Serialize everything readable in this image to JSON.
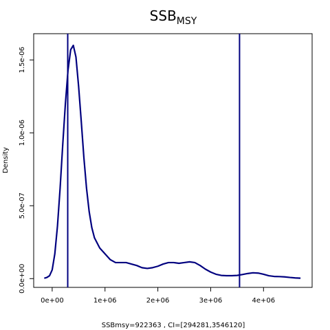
{
  "chart_data": {
    "type": "line",
    "title": "SSB",
    "title_subscript": "MSY",
    "xlabel": "SSBmsy=922363 , CI=[294281,3546120]",
    "ylabel": "Density",
    "xlim": [
      -350000,
      4920000
    ],
    "ylim": [
      -6e-08,
      1.68e-06
    ],
    "x_ticks": [
      0,
      1000000,
      2000000,
      3000000,
      4000000
    ],
    "x_tick_labels": [
      "0e+00",
      "1e+06",
      "2e+06",
      "3e+06",
      "4e+06"
    ],
    "y_ticks": [
      0,
      5e-07,
      1e-06,
      1.5e-06
    ],
    "y_tick_labels": [
      "0.0e+00",
      "5.0e-07",
      "1.0e-06",
      "1.5e-06"
    ],
    "grid": false,
    "line_color": "#00007f",
    "series": [
      {
        "x": [
          -150000,
          -100000,
          -50000,
          0,
          50000,
          100000,
          150000,
          200000,
          250000,
          300000,
          350000,
          400000,
          450000,
          500000,
          550000,
          600000,
          650000,
          700000,
          750000,
          800000,
          900000,
          1000000,
          1100000,
          1200000,
          1300000,
          1400000,
          1500000,
          1600000,
          1700000,
          1800000,
          1900000,
          2000000,
          2100000,
          2200000,
          2300000,
          2400000,
          2500000,
          2600000,
          2700000,
          2800000,
          2900000,
          3000000,
          3100000,
          3200000,
          3300000,
          3400000,
          3500000,
          3600000,
          3700000,
          3800000,
          3900000,
          4000000,
          4100000,
          4200000,
          4300000,
          4400000,
          4500000,
          4600000,
          4700000
        ],
        "y": [
          3e-09,
          8e-09,
          2e-08,
          6e-08,
          1.7e-07,
          3.6e-07,
          6.2e-07,
          9.2e-07,
          1.2e-06,
          1.43e-06,
          1.57e-06,
          1.6e-06,
          1.52e-06,
          1.32e-06,
          1.08e-06,
          8.3e-07,
          6.2e-07,
          4.6e-07,
          3.5e-07,
          2.8e-07,
          2.1e-07,
          1.7e-07,
          1.3e-07,
          1.1e-07,
          1.1e-07,
          1.1e-07,
          1e-07,
          9e-08,
          7.5e-08,
          7e-08,
          7.5e-08,
          8.5e-08,
          1e-07,
          1.1e-07,
          1.1e-07,
          1.05e-07,
          1.1e-07,
          1.15e-07,
          1.1e-07,
          9e-08,
          6.5e-08,
          4.5e-08,
          3e-08,
          2.2e-08,
          2e-08,
          2e-08,
          2.2e-08,
          2.8e-08,
          3.5e-08,
          4e-08,
          3.8e-08,
          3e-08,
          2e-08,
          1.5e-08,
          1.4e-08,
          1.2e-08,
          8e-09,
          5e-09,
          3e-09
        ]
      }
    ],
    "vlines": [
      294281,
      3546120
    ]
  }
}
